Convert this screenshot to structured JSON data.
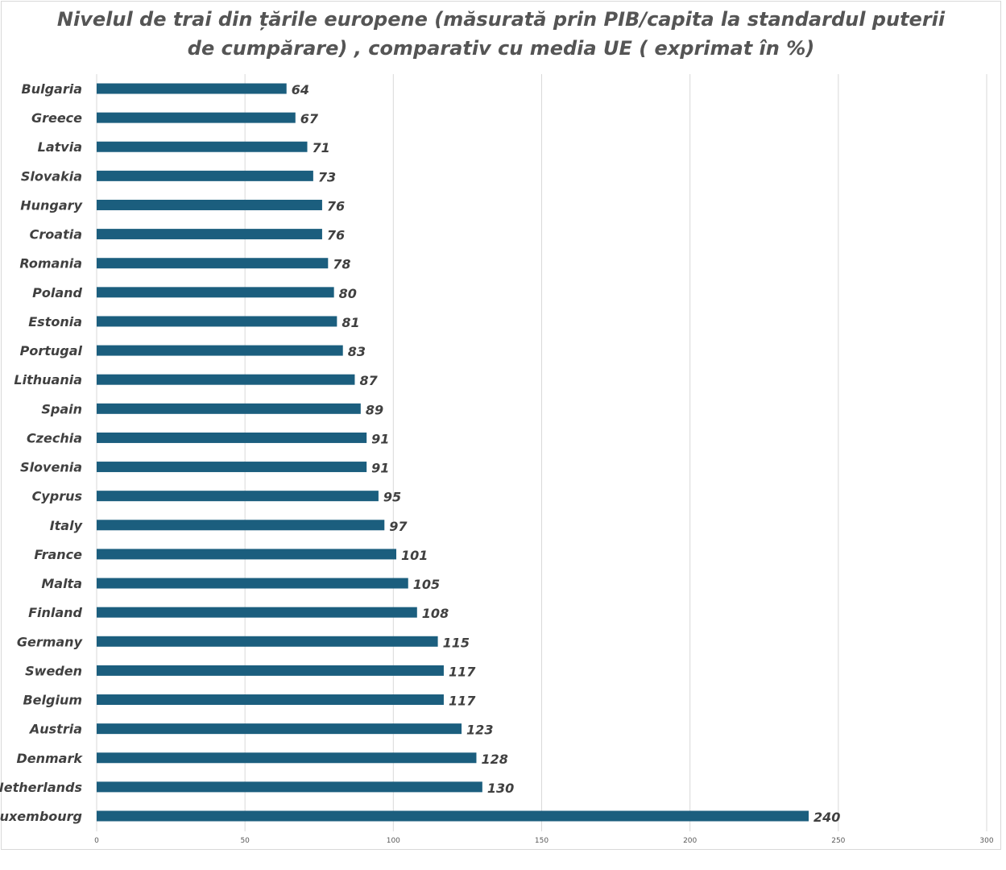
{
  "chart_data": {
    "type": "bar",
    "orientation": "horizontal",
    "title": "Nivelul de trai din țările europene (măsurată prin PIB/capita la standardul puterii de cumpărare) , comparativ cu media UE ( exprimat în %)",
    "categories": [
      "Bulgaria",
      "Greece",
      "Latvia",
      "Slovakia",
      "Hungary",
      "Croatia",
      "Romania",
      "Poland",
      "Estonia",
      "Portugal",
      "Lithuania",
      "Spain",
      "Czechia",
      "Slovenia",
      "Cyprus",
      "Italy",
      "France",
      "Malta",
      "Finland",
      "Germany",
      "Sweden",
      "Belgium",
      "Austria",
      "Denmark",
      "Netherlands",
      "Luxembourg"
    ],
    "values": [
      64,
      67,
      71,
      73,
      76,
      76,
      78,
      80,
      81,
      83,
      87,
      89,
      91,
      91,
      95,
      97,
      101,
      105,
      108,
      115,
      117,
      117,
      123,
      128,
      130,
      240
    ],
    "xlim": [
      0,
      300
    ],
    "xticks": [
      0,
      50,
      100,
      150,
      200,
      250,
      300
    ],
    "grid": true,
    "legend": "none",
    "bar_color": "#1b5e7e"
  }
}
